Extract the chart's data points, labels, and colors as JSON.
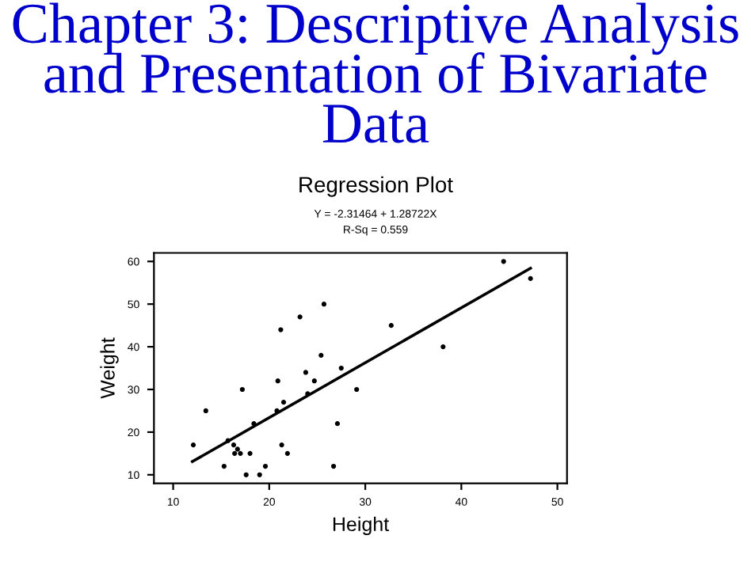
{
  "chart_data": {
    "type": "scatter",
    "title": "Chapter 3: Descriptive Analysis and Presentation of Bivariate Data",
    "subtitle": "Regression Plot",
    "annotations": [
      "Y = -2.31464 + 1.28722X",
      "R-Sq = 0.559"
    ],
    "xlabel": "Height",
    "ylabel": "Weight",
    "series": [
      {
        "color": "#000000",
        "marker": "circle",
        "x": [
          12.1,
          13.4,
          15.3,
          15.7,
          16.3,
          16.4,
          16.7,
          17.0,
          17.2,
          17.6,
          18.0,
          18.4,
          19.0,
          19.6,
          20.8,
          20.9,
          21.2,
          21.3,
          21.5,
          21.9,
          23.2,
          23.8,
          24.0,
          24.7,
          25.4,
          25.7,
          26.7,
          27.1,
          27.5,
          29.1,
          32.7,
          38.1,
          44.4,
          47.2
        ],
        "values": [
          17,
          25,
          12,
          18,
          17,
          15,
          16,
          15,
          30,
          10,
          15,
          22,
          10,
          12,
          25,
          32,
          44,
          17,
          27,
          15,
          47,
          34,
          29,
          32,
          38,
          50,
          12,
          22,
          35,
          30,
          45,
          40,
          60,
          56
        ]
      },
      {
        "type": "line",
        "marker": "none",
        "color": "#000000",
        "x": [
          12.0,
          47.2
        ],
        "values": [
          13.1,
          58.4
        ]
      }
    ],
    "xlim": [
      8,
      51
    ],
    "ylim": [
      8,
      62
    ],
    "xticks": [
      10,
      20,
      30,
      40,
      50
    ],
    "yticks": [
      10,
      20,
      30,
      40,
      50,
      60
    ],
    "grid": false,
    "legend": false
  }
}
